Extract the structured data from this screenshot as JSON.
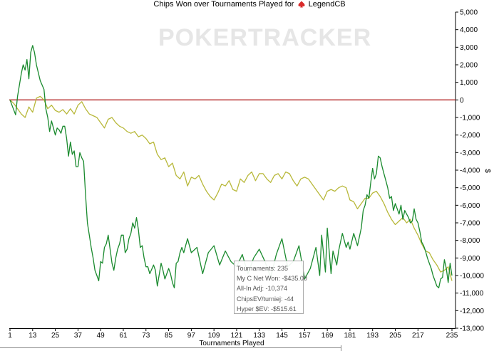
{
  "header": {
    "title_prefix": "Chips Won over Tournaments Played for",
    "player": "LegendCB",
    "player_icon": "poker-spade-icon"
  },
  "watermark": "POKERTRACKER",
  "tooltip": {
    "tournaments": "Tournaments: 235",
    "net_won": "My C Net Won: -$435.00",
    "allin_adj": "All-In Adj: -10,374",
    "chips_ev": "ChipsEV/turniej: -44",
    "hyper_sev": "Hyper $EV: -$515.61"
  },
  "colors": {
    "green_line": "#1a8a2e",
    "yellow_line": "#b8b83a",
    "zero_line": "#b22222",
    "axis": "#000000"
  },
  "chart_data": {
    "type": "line",
    "title": "Chips Won over Tournaments Played for LegendCB",
    "xlabel": "Tournaments Played",
    "ylabel": "$",
    "xlim": [
      1,
      235
    ],
    "ylim": [
      -13000,
      5000
    ],
    "x_ticks": [
      1,
      13,
      25,
      37,
      49,
      61,
      73,
      85,
      97,
      109,
      121,
      133,
      145,
      157,
      169,
      181,
      193,
      205,
      217,
      235
    ],
    "y_ticks": [
      5000,
      4000,
      3000,
      2000,
      1000,
      0,
      -1000,
      -2000,
      -3000,
      -4000,
      -5000,
      -6000,
      -7000,
      -8000,
      -9000,
      -10000,
      -11000,
      -12000,
      -13000
    ],
    "y_tick_labels": [
      "5,000",
      "4,000",
      "3,000",
      "2,000",
      "1,000",
      "0",
      "-1,000",
      "-2,000",
      "-3,000",
      "-4,000",
      "-5,000",
      "-6,000",
      "-7,000",
      "-8,000",
      "-9,000",
      "-10,000",
      "-11,000",
      "-12,000",
      "-13,000"
    ],
    "zero_line": 0,
    "grid": false,
    "series": [
      {
        "color": "#1a8a2e",
        "x": [
          1,
          4,
          5,
          7,
          8,
          9,
          10,
          11,
          12,
          13,
          14,
          15,
          17,
          19,
          20,
          21,
          22,
          23,
          25,
          26,
          27,
          28,
          29,
          30,
          31,
          32,
          33,
          34,
          35,
          36,
          37,
          38,
          39,
          40,
          41,
          42,
          43,
          44,
          45,
          46,
          47,
          48,
          49,
          50,
          51,
          52,
          53,
          55,
          56,
          57,
          58,
          59,
          60,
          61,
          62,
          63,
          64,
          65,
          66,
          67,
          68,
          69,
          70,
          71,
          72,
          73,
          74,
          75,
          77,
          78,
          79,
          81,
          82,
          83,
          85,
          86,
          87,
          88,
          89,
          90,
          91,
          92,
          93,
          94,
          95,
          97,
          100,
          103,
          106,
          109,
          112,
          115,
          118,
          121,
          124,
          127,
          130,
          133,
          136,
          139,
          142,
          145,
          148,
          151,
          154,
          157,
          160,
          163,
          165,
          166,
          168,
          169,
          171,
          172,
          174,
          175,
          177,
          179,
          180,
          181,
          183,
          185,
          187,
          188,
          189,
          190,
          191,
          192,
          193,
          194,
          195,
          196,
          197,
          198,
          199,
          200,
          201,
          202,
          203,
          204,
          205,
          206,
          207,
          208,
          209,
          210,
          211,
          212,
          213,
          214,
          215,
          216,
          217,
          218,
          219,
          220,
          221,
          222,
          223,
          224,
          225,
          226,
          227,
          228,
          229,
          230,
          231,
          232,
          233,
          234,
          235
        ],
        "values": [
          0,
          -850,
          200,
          1500,
          2000,
          1700,
          2300,
          1200,
          2700,
          3100,
          2700,
          2000,
          1100,
          600,
          -500,
          -1000,
          -1800,
          -1200,
          -2000,
          -1600,
          -1700,
          -1900,
          -1500,
          -1500,
          -2200,
          -3200,
          -2400,
          -3100,
          -2900,
          -3800,
          -3800,
          -3000,
          -3300,
          -3500,
          -5400,
          -7000,
          -7700,
          -8400,
          -9000,
          -9700,
          -10000,
          -10300,
          -9200,
          -9300,
          -8400,
          -8200,
          -7700,
          -9300,
          -9700,
          -9000,
          -8500,
          -8200,
          -7700,
          -7700,
          -8700,
          -8500,
          -7900,
          -7600,
          -7000,
          -7300,
          -6700,
          -7400,
          -8400,
          -8300,
          -9000,
          -9500,
          -9500,
          -9900,
          -9400,
          -9700,
          -10600,
          -9300,
          -9700,
          -10200,
          -9600,
          -9900,
          -10400,
          -10700,
          -9300,
          -9200,
          -8700,
          -8400,
          -8700,
          -8300,
          -7900,
          -8700,
          -8400,
          -9900,
          -8700,
          -8300,
          -9400,
          -8600,
          -9200,
          -9500,
          -8800,
          -9900,
          -9000,
          -8500,
          -9200,
          -10100,
          -8800,
          -7900,
          -9500,
          -9200,
          -8300,
          -10200,
          -9600,
          -8400,
          -10000,
          -7700,
          -9800,
          -7300,
          -9900,
          -8600,
          -9400,
          -8600,
          -7600,
          -8400,
          -8100,
          -8500,
          -7600,
          -8300,
          -7300,
          -6300,
          -6000,
          -5400,
          -5600,
          -4700,
          -3900,
          -4500,
          -4200,
          -3200,
          -3300,
          -3800,
          -4200,
          -4600,
          -5000,
          -5600,
          -5500,
          -6300,
          -5900,
          -6200,
          -6500,
          -6000,
          -6800,
          -6300,
          -6500,
          -6700,
          -7000,
          -6900,
          -6200,
          -6800,
          -7000,
          -7500,
          -8100,
          -8300,
          -8600,
          -9000,
          -9300,
          -9600,
          -10000,
          -10300,
          -10600,
          -10700,
          -10200,
          -10100,
          -9100,
          -9600,
          -10400,
          -9300,
          -10000
        ]
      },
      {
        "color": "#b8b83a",
        "x": [
          1,
          3,
          5,
          7,
          9,
          11,
          13,
          15,
          17,
          19,
          21,
          23,
          25,
          27,
          29,
          31,
          33,
          35,
          37,
          39,
          41,
          43,
          45,
          47,
          49,
          51,
          53,
          55,
          57,
          59,
          61,
          63,
          65,
          67,
          69,
          71,
          73,
          75,
          77,
          79,
          81,
          83,
          85,
          87,
          89,
          91,
          93,
          95,
          97,
          99,
          101,
          103,
          105,
          107,
          109,
          111,
          113,
          115,
          117,
          119,
          121,
          123,
          125,
          127,
          129,
          131,
          133,
          135,
          137,
          139,
          141,
          143,
          145,
          147,
          149,
          151,
          153,
          155,
          157,
          159,
          161,
          163,
          165,
          167,
          169,
          171,
          173,
          175,
          177,
          179,
          181,
          183,
          185,
          187,
          189,
          191,
          193,
          195,
          197,
          199,
          201,
          203,
          205,
          207,
          209,
          211,
          213,
          215,
          217,
          219,
          221,
          223,
          225,
          227,
          229,
          231,
          233,
          235
        ],
        "values": [
          0,
          -200,
          -500,
          -800,
          -1000,
          -400,
          -700,
          100,
          200,
          0,
          -500,
          -300,
          -600,
          -700,
          -550,
          -800,
          -500,
          -800,
          -300,
          -100,
          -500,
          -800,
          -900,
          -1000,
          -1300,
          -1600,
          -1100,
          -1000,
          -1300,
          -1500,
          -1600,
          -1800,
          -1900,
          -1800,
          -2100,
          -2000,
          -2200,
          -2500,
          -2400,
          -3100,
          -3400,
          -3300,
          -3800,
          -3600,
          -4300,
          -4500,
          -4100,
          -4900,
          -4400,
          -4500,
          -4300,
          -4800,
          -5200,
          -5500,
          -5700,
          -5300,
          -4800,
          -4900,
          -4600,
          -5100,
          -5200,
          -4500,
          -4700,
          -4300,
          -4100,
          -4600,
          -4200,
          -4200,
          -4500,
          -4700,
          -4300,
          -4200,
          -4500,
          -4100,
          -4200,
          -4600,
          -4900,
          -4500,
          -4400,
          -4500,
          -4800,
          -5100,
          -5400,
          -5700,
          -5200,
          -5100,
          -5200,
          -5000,
          -4900,
          -5000,
          -5700,
          -5800,
          -6200,
          -5900,
          -5600,
          -5600,
          -5300,
          -5200,
          -5500,
          -5900,
          -6400,
          -6800,
          -7100,
          -6900,
          -6700,
          -7000,
          -6800,
          -7300,
          -7700,
          -8200,
          -8600,
          -8700,
          -9100,
          -9400,
          -9800,
          -9700,
          -9500,
          -10300
        ]
      }
    ]
  }
}
